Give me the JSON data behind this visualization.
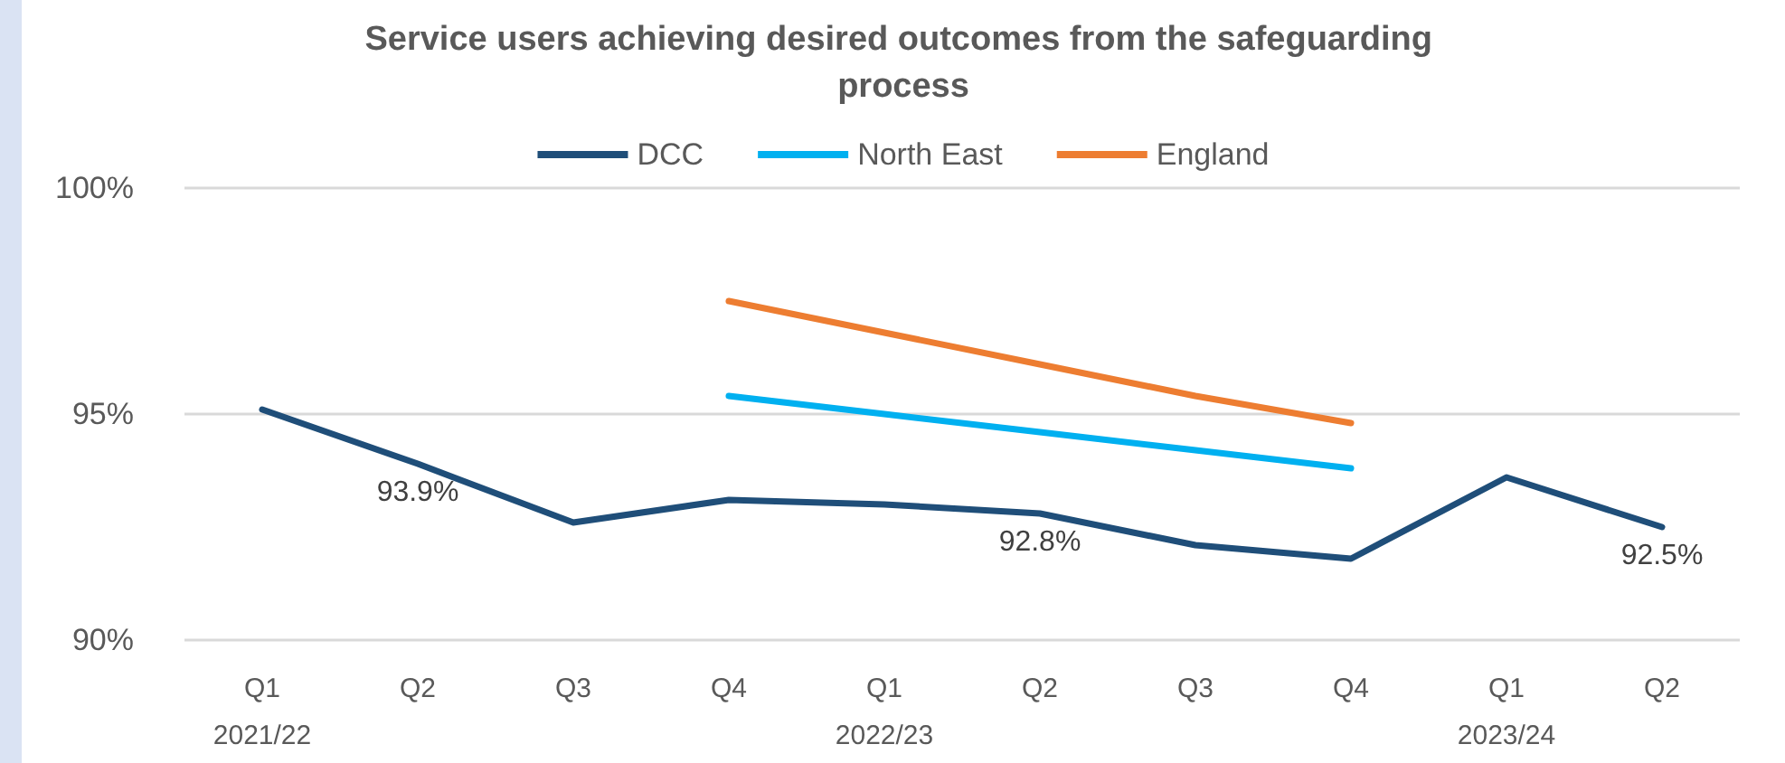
{
  "chart_data": {
    "type": "line",
    "title": "Service users achieving desired outcomes from the safeguarding process",
    "categories": [
      "Q1\n2021/22",
      "Q2",
      "Q3",
      "Q4",
      "Q1\n2022/23",
      "Q2",
      "Q3",
      "Q4",
      "Q1\n2023/24",
      "Q2"
    ],
    "series": [
      {
        "name": "DCC",
        "color": "#1f4e79",
        "values": [
          95.1,
          93.9,
          92.6,
          93.1,
          93.0,
          92.8,
          92.1,
          91.8,
          93.6,
          92.5
        ],
        "value_labels": [
          null,
          "93.9%",
          null,
          null,
          null,
          "92.8%",
          null,
          null,
          null,
          "92.5%"
        ]
      },
      {
        "name": "North East",
        "color": "#00b0f0",
        "values": [
          null,
          null,
          null,
          95.4,
          95.0,
          94.6,
          94.2,
          93.8,
          null,
          null
        ]
      },
      {
        "name": "England",
        "color": "#ed7d31",
        "values": [
          null,
          null,
          null,
          97.5,
          96.8,
          96.1,
          95.4,
          94.8,
          null,
          null
        ]
      }
    ],
    "ylim": [
      90,
      100
    ],
    "yticks": [
      {
        "value": 90,
        "label": "90%"
      },
      {
        "value": 95,
        "label": "95%"
      },
      {
        "value": 100,
        "label": "100%"
      }
    ],
    "grid": "y",
    "legend": "top",
    "marker": "none",
    "line_style": "solid"
  }
}
